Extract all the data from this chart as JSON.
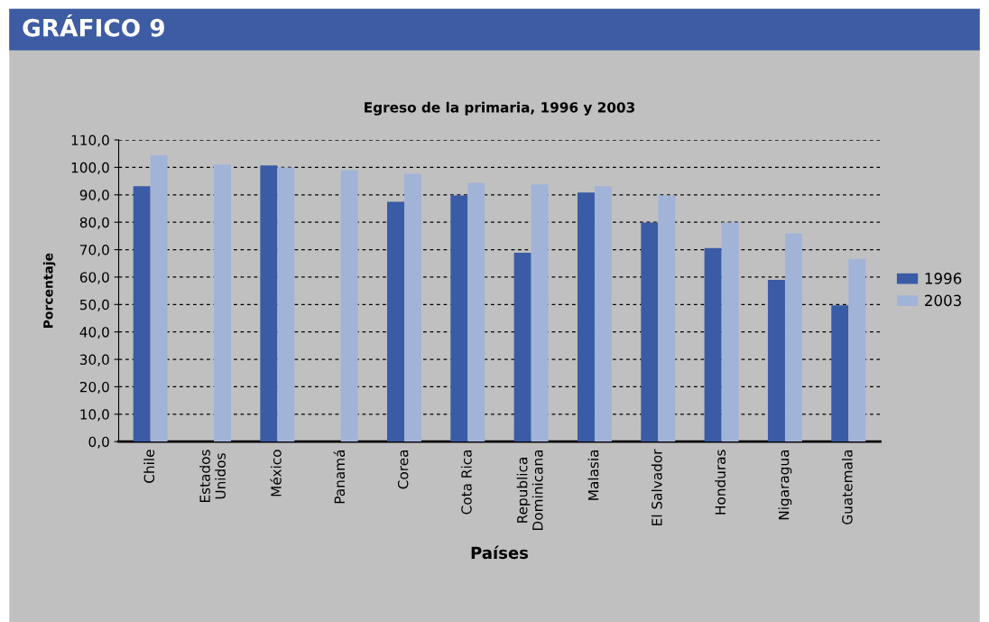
{
  "chart_data": {
    "type": "bar",
    "title": "Egreso de la primaria, 1996 y 2003",
    "xlabel": "Países",
    "ylabel": "Porcentaje",
    "annotations": [
      "GRÁFICO 9"
    ],
    "categories": [
      "Chile",
      "Estados\nUnidos",
      "México",
      "Panamá",
      "Corea",
      "Cota Rica",
      "Republica\nDominicana",
      "Malasia",
      "El Salvador",
      "Honduras",
      "Nigaragua",
      "Guatemala"
    ],
    "series": [
      {
        "name": "1996",
        "color": "#3a5ba5",
        "values": [
          93.1,
          null,
          100.7,
          null,
          87.5,
          89.8,
          68.9,
          90.8,
          79.9,
          70.6,
          59.0,
          49.7
        ]
      },
      {
        "name": "2003",
        "color": "#a2b3d8",
        "values": [
          104.4,
          101.0,
          100.0,
          99.0,
          97.7,
          94.4,
          93.8,
          93.1,
          89.8,
          79.9,
          75.9,
          66.6
        ]
      }
    ],
    "ylim": [
      0,
      110
    ],
    "yticks": [
      {
        "value": 0,
        "label": "0,0"
      },
      {
        "value": 10,
        "label": "10,0"
      },
      {
        "value": 20,
        "label": "20,0"
      },
      {
        "value": 30,
        "label": "30,0"
      },
      {
        "value": 40,
        "label": "40,0"
      },
      {
        "value": 50,
        "label": "50,0"
      },
      {
        "value": 60,
        "label": "60,0"
      },
      {
        "value": 70,
        "label": "70,0"
      },
      {
        "value": 80,
        "label": "80,0"
      },
      {
        "value": 90,
        "label": "90,0"
      },
      {
        "value": 100,
        "label": "100,0"
      },
      {
        "value": 110,
        "label": "110,0"
      }
    ],
    "grid": "y",
    "legend": "right"
  }
}
